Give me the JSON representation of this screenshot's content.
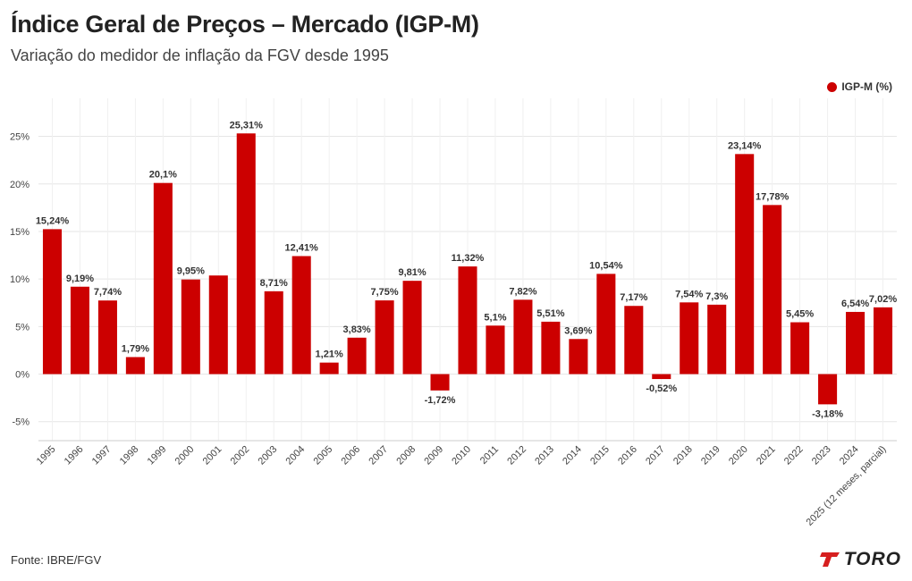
{
  "header": {
    "title": "Índice Geral de Preços – Mercado (IGP-M)",
    "subtitle": "Variação do medidor de inflação da FGV desde 1995"
  },
  "footer": {
    "source": "Fonte: IBRE/FGV",
    "logo_text": "TORO"
  },
  "colors": {
    "bar": "#cc0000",
    "logo_accent": "#d61f1f"
  },
  "chart_data": {
    "type": "bar",
    "title": "Índice Geral de Preços – Mercado (IGP-M)",
    "xlabel": "",
    "ylabel": "",
    "ylim": [
      -7,
      29
    ],
    "yticks": [
      -5,
      0,
      5,
      10,
      15,
      20,
      25
    ],
    "ytick_labels": [
      "-5%",
      "0%",
      "5%",
      "10%",
      "15%",
      "20%",
      "25%"
    ],
    "grid": true,
    "legend_position": "top-right",
    "categories": [
      "1995",
      "1996",
      "1997",
      "1998",
      "1999",
      "2000",
      "2001",
      "2002",
      "2003",
      "2004",
      "2005",
      "2006",
      "2007",
      "2008",
      "2009",
      "2010",
      "2011",
      "2012",
      "2013",
      "2014",
      "2015",
      "2016",
      "2017",
      "2018",
      "2019",
      "2020",
      "2021",
      "2022",
      "2023",
      "2024",
      "2025 (12 meses, parcial)"
    ],
    "series": [
      {
        "name": "IGP-M (%)",
        "values": [
          15.24,
          9.19,
          7.74,
          1.79,
          20.1,
          9.95,
          10.37,
          25.31,
          8.71,
          12.41,
          1.21,
          3.83,
          7.75,
          9.81,
          -1.72,
          11.32,
          5.1,
          7.82,
          5.51,
          3.69,
          10.54,
          7.17,
          -0.52,
          7.54,
          7.3,
          23.14,
          17.78,
          5.45,
          -3.18,
          6.54,
          7.02
        ],
        "labels": [
          "15,24%",
          "9,19%",
          "7,74%",
          "1,79%",
          "20,1%",
          "9,95%",
          "",
          "25,31%",
          "8,71%",
          "12,41%",
          "1,21%",
          "3,83%",
          "7,75%",
          "9,81%",
          "-1,72%",
          "11,32%",
          "5,1%",
          "7,82%",
          "5,51%",
          "3,69%",
          "10,54%",
          "7,17%",
          "-0,52%",
          "7,54%",
          "7,3%",
          "23,14%",
          "17,78%",
          "5,45%",
          "-3,18%",
          "6,54%",
          "7,02%"
        ]
      }
    ]
  }
}
